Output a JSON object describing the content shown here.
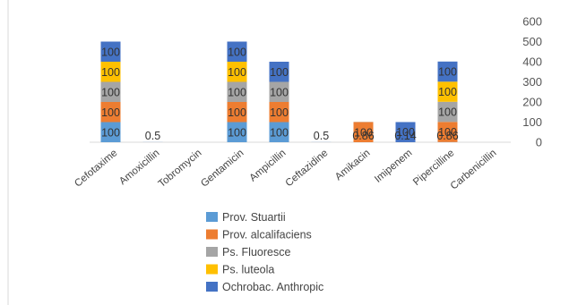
{
  "chart_data": {
    "type": "bar",
    "stacked": true,
    "categories": [
      "Cefotaxime",
      "Amoxicillin",
      "Tobromycin",
      "Gentamicin",
      "Ampicillin",
      "Ceftazidine",
      "Amikacin",
      "Imipenem",
      "Pipercilline",
      "Carbenicillin"
    ],
    "series": [
      {
        "name": "Prov. Stuartii",
        "color": "#5B9BD5",
        "values": [
          100,
          0.5,
          0,
          100,
          100,
          0.5,
          0,
          0.14,
          0.86,
          0
        ],
        "labels": [
          "100",
          "0.5",
          "",
          "100",
          "100",
          "0.5",
          "",
          "0.14",
          "0.86",
          ""
        ]
      },
      {
        "name": "Prov. alcalifaciens",
        "color": "#ED7D31",
        "values": [
          100,
          0,
          0,
          100,
          100,
          0,
          100,
          0,
          100,
          0
        ],
        "labels": [
          "100",
          "",
          "",
          "100",
          "100",
          "",
          "100",
          "",
          "100",
          ""
        ]
      },
      {
        "name": "Ps. Fluoresce",
        "color": "#A5A5A5",
        "values": [
          100,
          0,
          0,
          100,
          100,
          0,
          0.86,
          0,
          100,
          0
        ],
        "labels": [
          "100",
          "",
          "",
          "100",
          "100",
          "",
          "0.86",
          "",
          "100",
          ""
        ]
      },
      {
        "name": "Ps. luteola",
        "color": "#FFC000",
        "values": [
          100,
          0,
          0,
          100,
          0,
          0,
          0,
          0,
          100,
          0
        ],
        "labels": [
          "100",
          "",
          "",
          "100",
          "",
          "",
          "",
          "",
          "100",
          ""
        ]
      },
      {
        "name": "Ochrobac. Anthropic",
        "color": "#4472C4",
        "values": [
          100,
          0,
          0,
          100,
          100,
          0,
          0,
          100,
          100,
          0
        ],
        "labels": [
          "100",
          "",
          "",
          "100",
          "100",
          "",
          "",
          "100",
          "100",
          ""
        ]
      }
    ],
    "y_ticks": [
      "0",
      "100",
      "200",
      "300",
      "400",
      "500",
      "600"
    ],
    "ylim": [
      0,
      600
    ],
    "y_axis_side": "right",
    "legend_position": "bottom",
    "grid": false
  }
}
